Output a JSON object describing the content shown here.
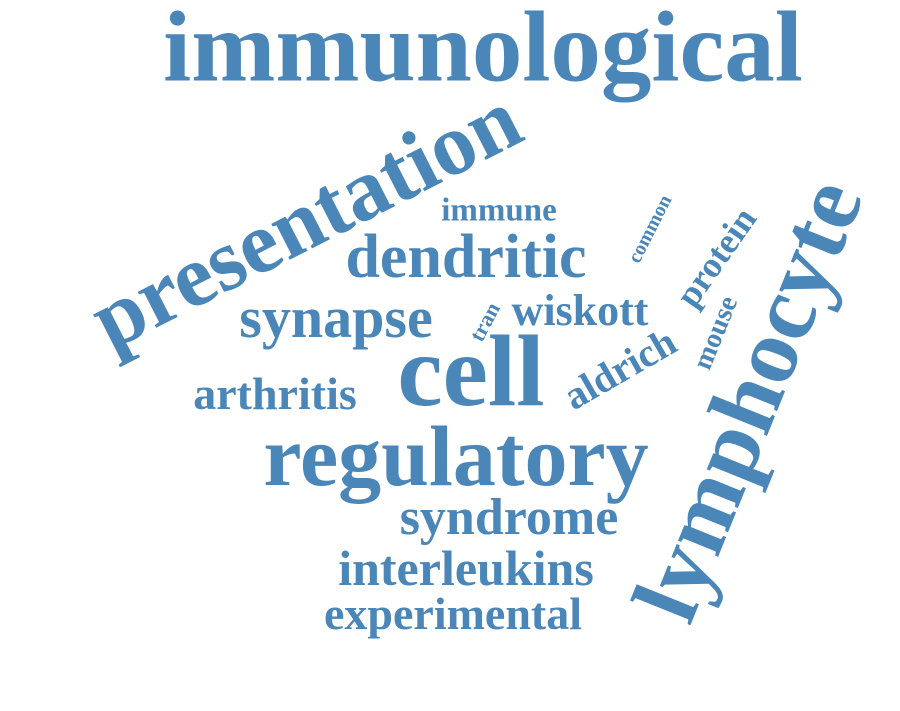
{
  "color": "#4a86b8",
  "words": {
    "immunological": "immunological",
    "presentation": "presentation",
    "lymphocyte": "lymphocyte",
    "immune": "immune",
    "dendritic": "dendritic",
    "common": "common",
    "protein": "protein",
    "synapse": "synapse",
    "tran": "tran",
    "wiskott": "wiskott",
    "mouse": "mouse",
    "aldrich": "aldrich",
    "arthritis": "arthritis",
    "cell": "cell",
    "regulatory": "regulatory",
    "syndrome": "syndrome",
    "interleukins": "interleukins",
    "experimental": "experimental"
  }
}
